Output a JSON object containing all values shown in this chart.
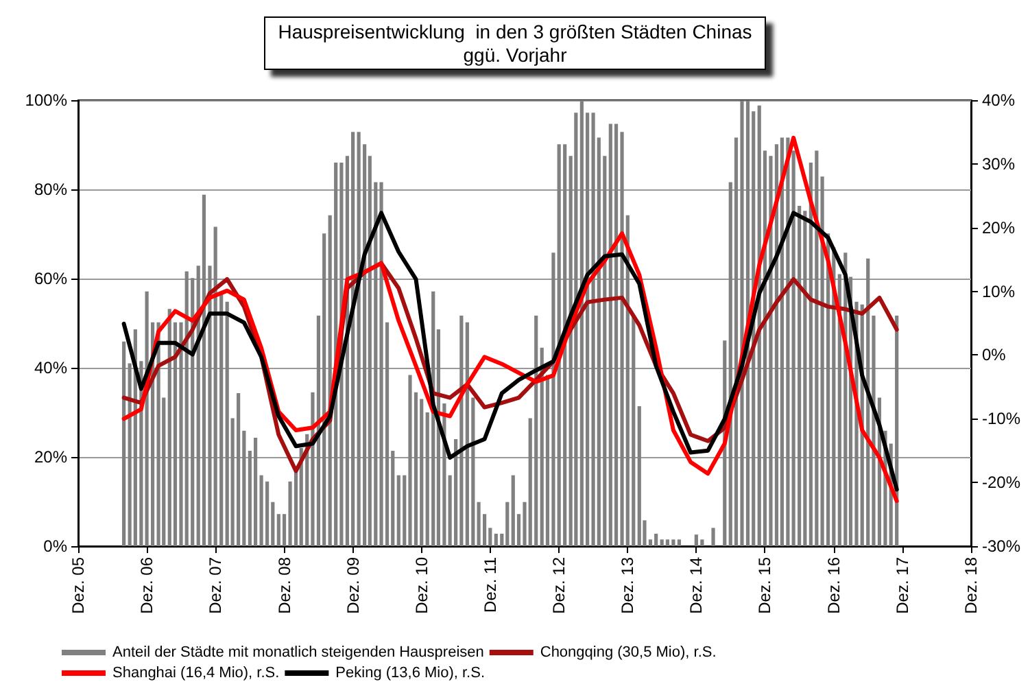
{
  "chart_data": {
    "type": "bar",
    "title": "Hauspreisentwicklung  in den 3 größten Städten Chinas",
    "subtitle": "ggü. Vorjahr",
    "x": [
      "2006-08",
      "2006-09",
      "2006-10",
      "2006-11",
      "2006-12",
      "2007-01",
      "2007-02",
      "2007-03",
      "2007-04",
      "2007-05",
      "2007-06",
      "2007-07",
      "2007-08",
      "2007-09",
      "2007-10",
      "2007-11",
      "2007-12",
      "2008-01",
      "2008-02",
      "2008-03",
      "2008-04",
      "2008-05",
      "2008-06",
      "2008-07",
      "2008-08",
      "2008-09",
      "2008-10",
      "2008-11",
      "2008-12",
      "2009-01",
      "2009-02",
      "2009-03",
      "2009-04",
      "2009-05",
      "2009-06",
      "2009-07",
      "2009-08",
      "2009-09",
      "2009-10",
      "2009-11",
      "2009-12",
      "2010-01",
      "2010-02",
      "2010-03",
      "2010-04",
      "2010-05",
      "2010-06",
      "2010-07",
      "2010-08",
      "2010-09",
      "2010-10",
      "2010-11",
      "2010-12",
      "2011-01",
      "2011-02",
      "2011-03",
      "2011-04",
      "2011-05",
      "2011-06",
      "2011-07",
      "2011-08",
      "2011-09",
      "2011-10",
      "2011-11",
      "2011-12",
      "2012-01",
      "2012-02",
      "2012-03",
      "2012-04",
      "2012-05",
      "2012-06",
      "2012-07",
      "2012-08",
      "2012-09",
      "2012-10",
      "2012-11",
      "2012-12",
      "2013-01",
      "2013-02",
      "2013-03",
      "2013-04",
      "2013-05",
      "2013-06",
      "2013-07",
      "2013-08",
      "2013-09",
      "2013-10",
      "2013-11",
      "2013-12",
      "2014-01",
      "2014-02",
      "2014-03",
      "2014-04",
      "2014-05",
      "2014-06",
      "2014-07",
      "2014-08",
      "2014-09",
      "2014-10",
      "2014-11",
      "2014-12",
      "2015-01",
      "2015-02",
      "2015-03",
      "2015-04",
      "2015-05",
      "2015-06",
      "2015-07",
      "2015-08",
      "2015-09",
      "2015-10",
      "2015-11",
      "2015-12",
      "2016-01",
      "2016-02",
      "2016-03",
      "2016-04",
      "2016-05",
      "2016-06",
      "2016-07",
      "2016-08",
      "2016-09",
      "2016-10",
      "2016-11",
      "2016-12",
      "2017-01",
      "2017-02",
      "2017-03",
      "2017-04",
      "2017-05",
      "2017-06",
      "2017-07",
      "2017-08",
      "2017-09",
      "2017-10",
      "2017-11"
    ],
    "series": [
      {
        "name": "Anteil der Städte mit monatlich steigenden Hauspreisen",
        "color": "#808080",
        "values": [
          45.9,
          41,
          48.6,
          41.5,
          57.1,
          50.2,
          50.2,
          33.3,
          53.2,
          50.2,
          50.2,
          61.6,
          60.1,
          62.9,
          78.8,
          62.9,
          71.6,
          56.8,
          54.8,
          28.7,
          34.3,
          25.9,
          21.4,
          24.3,
          15.9,
          14.5,
          9.9,
          7.2,
          7.2,
          14.5,
          16.9,
          22,
          25.1,
          34.5,
          51.7,
          70.1,
          74.2,
          86,
          86,
          87.5,
          92.9,
          92.9,
          90.1,
          87.5,
          81.6,
          81.6,
          50.2,
          21.4,
          15.9,
          15.9,
          38.4,
          34.5,
          33.0,
          30.0,
          57.1,
          48.6,
          32,
          15.9,
          24,
          51.7,
          50.2,
          33.3,
          9.9,
          7.2,
          4.1,
          2.8,
          2.8,
          9.9,
          15.9,
          7.2,
          9.9,
          28.7,
          51.7,
          44.5,
          38.4,
          65.8,
          90.1,
          90.1,
          87.5,
          97.2,
          99.8,
          97.2,
          97.2,
          91.6,
          87.5,
          94.7,
          94.7,
          92.9,
          74.2,
          51.7,
          31.4,
          5.8,
          1.5,
          2.8,
          1.5,
          1.5,
          1.5,
          1.5,
          0,
          0,
          2.6,
          1.5,
          0,
          4.1,
          0,
          46.1,
          81.6,
          91.6,
          100,
          100,
          97.5,
          98.8,
          88.7,
          87.5,
          90.1,
          91.6,
          91.6,
          88.7,
          76.3,
          75.2,
          86,
          88.7,
          82.9,
          70.1,
          67,
          61,
          65.8,
          60.4,
          54.8,
          54.2,
          64.5,
          51.7,
          33.3,
          25.9,
          23,
          51.7
        ]
      },
      {
        "name": "Chongqing (30,5 Mio), r.S.",
        "type": "line",
        "axis": "y2",
        "color": "#a50f0f",
        "x": [
          "2006-08",
          "2006-11",
          "2007-02",
          "2007-05",
          "2007-08",
          "2007-11",
          "2008-02",
          "2008-05",
          "2008-08",
          "2008-11",
          "2009-02",
          "2009-05",
          "2009-08",
          "2009-11",
          "2010-02",
          "2010-05",
          "2010-08",
          "2010-11",
          "2011-02",
          "2011-05",
          "2011-08",
          "2011-11",
          "2012-02",
          "2012-05",
          "2012-08",
          "2012-11",
          "2013-02",
          "2013-05",
          "2013-08",
          "2013-11",
          "2014-02",
          "2014-05",
          "2014-08",
          "2014-11",
          "2015-02",
          "2015-05",
          "2015-08",
          "2015-11",
          "2016-02",
          "2016-05",
          "2016-08",
          "2016-11",
          "2017-02",
          "2017-05",
          "2017-08",
          "2017-11"
        ],
        "values": [
          -6.7,
          -7.5,
          -1.7,
          -0.3,
          4.0,
          9.7,
          11.9,
          7.6,
          -0.3,
          -12.5,
          -18.2,
          -13.2,
          -10.3,
          10.5,
          13.0,
          14.4,
          10.5,
          2.6,
          -6.0,
          -6.7,
          -4.6,
          -8.2,
          -7.5,
          -6.7,
          -3.9,
          -1.0,
          4.0,
          8.3,
          8.7,
          9.0,
          4.7,
          -1.7,
          -6.0,
          -12.5,
          -13.5,
          -11.4,
          -3.9,
          4.0,
          8.3,
          11.9,
          8.7,
          7.6,
          7.2,
          6.5,
          9.0,
          4.0
        ]
      },
      {
        "name": "Shanghai (16,4 Mio), r.S.",
        "type": "line",
        "axis": "y2",
        "color": "#ff0000",
        "x": [
          "2006-08",
          "2006-11",
          "2007-02",
          "2007-05",
          "2007-08",
          "2007-11",
          "2008-02",
          "2008-05",
          "2008-08",
          "2008-11",
          "2009-02",
          "2009-05",
          "2009-08",
          "2009-11",
          "2010-02",
          "2010-05",
          "2010-08",
          "2010-11",
          "2011-02",
          "2011-05",
          "2011-08",
          "2011-11",
          "2012-02",
          "2012-05",
          "2012-08",
          "2012-11",
          "2013-02",
          "2013-05",
          "2013-08",
          "2013-11",
          "2014-02",
          "2014-05",
          "2014-08",
          "2014-11",
          "2015-02",
          "2015-05",
          "2015-08",
          "2015-11",
          "2016-02",
          "2016-05",
          "2016-08",
          "2016-11",
          "2017-02",
          "2017-05",
          "2017-08",
          "2017-11"
        ],
        "values": [
          -10.0,
          -8.5,
          3.7,
          6.9,
          5.4,
          9.0,
          10.1,
          8.7,
          1.1,
          -8.9,
          -11.8,
          -11.4,
          -8.9,
          11.9,
          13.0,
          14.4,
          5.4,
          -1.7,
          -8.9,
          -9.6,
          -4.6,
          -0.3,
          -1.4,
          -2.8,
          -4.2,
          -3.2,
          4.7,
          11.2,
          14.8,
          19.1,
          12.6,
          1.1,
          -11.8,
          -16.8,
          -18.6,
          -13.9,
          -0.3,
          14.1,
          24.1,
          34.1,
          24.1,
          14.8,
          1.9,
          -11.8,
          -16.1,
          -22.9
        ]
      },
      {
        "name": "Peking (13,6 Mio), r.S.",
        "type": "line",
        "axis": "y2",
        "color": "#000000",
        "x": [
          "2006-08",
          "2006-11",
          "2007-02",
          "2007-05",
          "2007-08",
          "2007-11",
          "2008-02",
          "2008-05",
          "2008-08",
          "2008-11",
          "2009-02",
          "2009-05",
          "2009-08",
          "2009-11",
          "2010-02",
          "2010-05",
          "2010-08",
          "2010-11",
          "2011-02",
          "2011-05",
          "2011-08",
          "2011-11",
          "2012-02",
          "2012-05",
          "2012-08",
          "2012-11",
          "2013-02",
          "2013-05",
          "2013-08",
          "2013-11",
          "2014-02",
          "2014-05",
          "2014-08",
          "2014-11",
          "2015-02",
          "2015-05",
          "2015-08",
          "2015-11",
          "2016-02",
          "2016-05",
          "2016-08",
          "2016-11",
          "2017-02",
          "2017-05",
          "2017-08",
          "2017-11"
        ],
        "values": [
          4.9,
          -5.3,
          1.9,
          1.9,
          0.1,
          6.5,
          6.5,
          5.1,
          -0.3,
          -9.6,
          -14.3,
          -13.9,
          -9.6,
          3.3,
          15.8,
          22.3,
          16.2,
          11.9,
          -7.8,
          -16.1,
          -14.3,
          -13.2,
          -6.0,
          -3.9,
          -2.4,
          -1.0,
          6.2,
          12.6,
          15.5,
          15.8,
          11.2,
          -1.7,
          -8.9,
          -15.3,
          -15.0,
          -10.0,
          -1.7,
          9.7,
          15.5,
          22.3,
          20.9,
          18.4,
          12.6,
          -3.2,
          -11.0,
          -21.1
        ]
      }
    ],
    "xlim": [
      "2005-12",
      "2018-12"
    ],
    "xticks": [
      {
        "value": "2005-12",
        "label": "Dez. 05"
      },
      {
        "value": "2006-12",
        "label": "Dez. 06"
      },
      {
        "value": "2007-12",
        "label": "Dez. 07"
      },
      {
        "value": "2008-12",
        "label": "Dez. 08"
      },
      {
        "value": "2009-12",
        "label": "Dez. 09"
      },
      {
        "value": "2010-12",
        "label": "Dez. 10"
      },
      {
        "value": "2011-12",
        "label": "Dez. 11"
      },
      {
        "value": "2012-12",
        "label": "Dez. 12"
      },
      {
        "value": "2013-12",
        "label": "Dez. 13"
      },
      {
        "value": "2014-12",
        "label": "Dez. 14"
      },
      {
        "value": "2015-12",
        "label": "Dez. 15"
      },
      {
        "value": "2016-12",
        "label": "Dez. 16"
      },
      {
        "value": "2017-12",
        "label": "Dez. 17"
      },
      {
        "value": "2018-12",
        "label": "Dez. 18"
      }
    ],
    "ylim": [
      0,
      100
    ],
    "yticks": [
      {
        "value": 0,
        "label": "0%"
      },
      {
        "value": 20,
        "label": "20%"
      },
      {
        "value": 40,
        "label": "40%"
      },
      {
        "value": 60,
        "label": "60%"
      },
      {
        "value": 80,
        "label": "80%"
      },
      {
        "value": 100,
        "label": "100%"
      }
    ],
    "y2lim": [
      -30,
      40
    ],
    "y2ticks": [
      {
        "value": -30,
        "label": "-30%"
      },
      {
        "value": -20,
        "label": "-20%"
      },
      {
        "value": -10,
        "label": "-10%"
      },
      {
        "value": 0,
        "label": "0%"
      },
      {
        "value": 10,
        "label": "10%"
      },
      {
        "value": 20,
        "label": "20%"
      },
      {
        "value": 30,
        "label": "30%"
      },
      {
        "value": 40,
        "label": "40%"
      }
    ],
    "grid": "y",
    "legend": "bottom",
    "marker": "none",
    "line_style": "solid"
  }
}
